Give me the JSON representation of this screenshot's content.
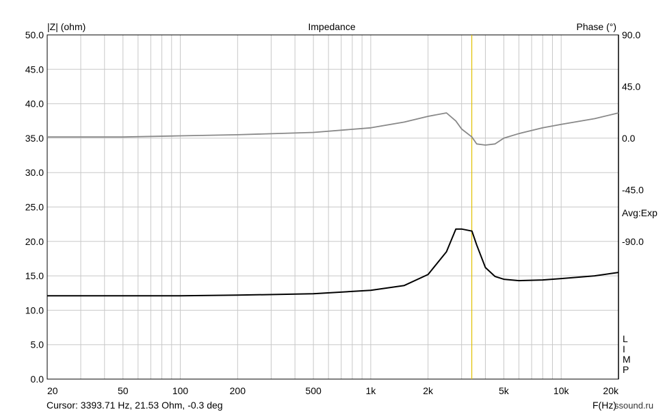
{
  "chart_data": {
    "type": "line",
    "title": "Impedance",
    "ylabel": "|Z| (ohm)",
    "y2label": "Phase (°)",
    "xlabel": "F(Hz)",
    "x_scale": "log",
    "xlim": [
      20,
      20000
    ],
    "ylim": [
      0,
      50
    ],
    "y2lim": [
      -210,
      90
    ],
    "grid": true,
    "x_ticks": [
      20,
      50,
      100,
      200,
      500,
      1000,
      2000,
      5000,
      10000,
      20000
    ],
    "x_tick_labels": [
      "20",
      "50",
      "100",
      "200",
      "500",
      "1k",
      "2k",
      "5k",
      "10k",
      "20k"
    ],
    "y_ticks": [
      0,
      5,
      10,
      15,
      20,
      25,
      30,
      35,
      40,
      45,
      50
    ],
    "y_tick_labels": [
      "0.0",
      "5.0",
      "10.0",
      "15.0",
      "20.0",
      "25.0",
      "30.0",
      "35.0",
      "40.0",
      "45.0",
      "50.0"
    ],
    "y2_ticks": [
      90,
      45,
      0,
      -45,
      -90
    ],
    "y2_tick_labels": [
      "90.0",
      "45.0",
      "0.0",
      "-45.0",
      "-90.0"
    ],
    "averaging_label": "Avg:Exp",
    "side_label": [
      "L",
      "I",
      "M",
      "P"
    ],
    "cursor_x": 3393.71,
    "cursor_text": "Cursor: 3393.71 Hz, 21.53 Ohm, -0.3 deg",
    "series": [
      {
        "name": "",
        "axis": "left",
        "color": "#000000",
        "x": [
          20,
          50,
          100,
          200,
          500,
          1000,
          1500,
          2000,
          2500,
          2800,
          3000,
          3400,
          3600,
          4000,
          4500,
          5000,
          6000,
          8000,
          10000,
          15000,
          20000
        ],
        "y": [
          12.1,
          12.1,
          12.1,
          12.2,
          12.4,
          12.9,
          13.6,
          15.2,
          18.5,
          21.8,
          21.8,
          21.5,
          19.5,
          16.2,
          14.9,
          14.5,
          14.3,
          14.4,
          14.6,
          15.0,
          15.5
        ]
      },
      {
        "name": "",
        "axis": "right",
        "color": "#888888",
        "x": [
          20,
          50,
          100,
          200,
          500,
          1000,
          1500,
          2000,
          2500,
          2800,
          3000,
          3400,
          3600,
          4000,
          4500,
          5000,
          6000,
          8000,
          10000,
          15000,
          20000
        ],
        "y": [
          1,
          1,
          2,
          3,
          5,
          9,
          14,
          19,
          22,
          15,
          8,
          1,
          -5,
          -6,
          -5,
          0,
          4,
          9,
          12,
          17,
          22
        ]
      }
    ]
  },
  "footer": {
    "cursor_text": "Cursor: 3393.71 Hz, 21.53 Ohm, -0.3 deg",
    "axis_unit": "F(Hz)",
    "watermark": "ssound.ru"
  }
}
